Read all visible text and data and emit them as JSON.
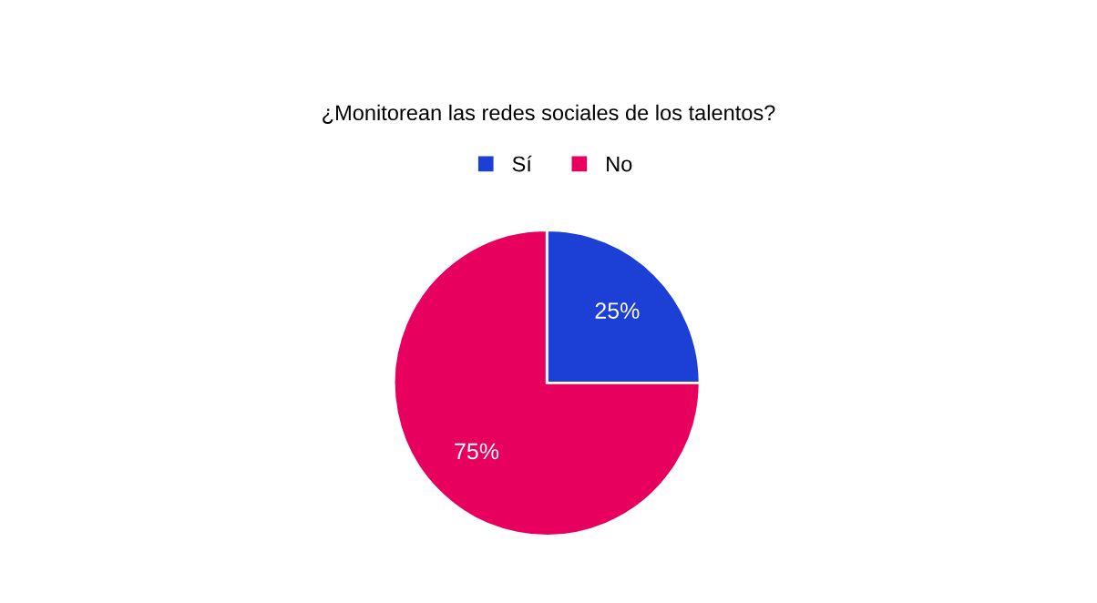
{
  "chart_data": {
    "type": "pie",
    "title": "¿Monitorean las redes sociales de los talentos?",
    "categories": [
      "Sí",
      "No"
    ],
    "values": [
      25,
      75
    ],
    "value_labels": [
      "25%",
      "75%"
    ],
    "colors": [
      "#1c3fd6",
      "#e8005f"
    ],
    "legend": "top"
  }
}
